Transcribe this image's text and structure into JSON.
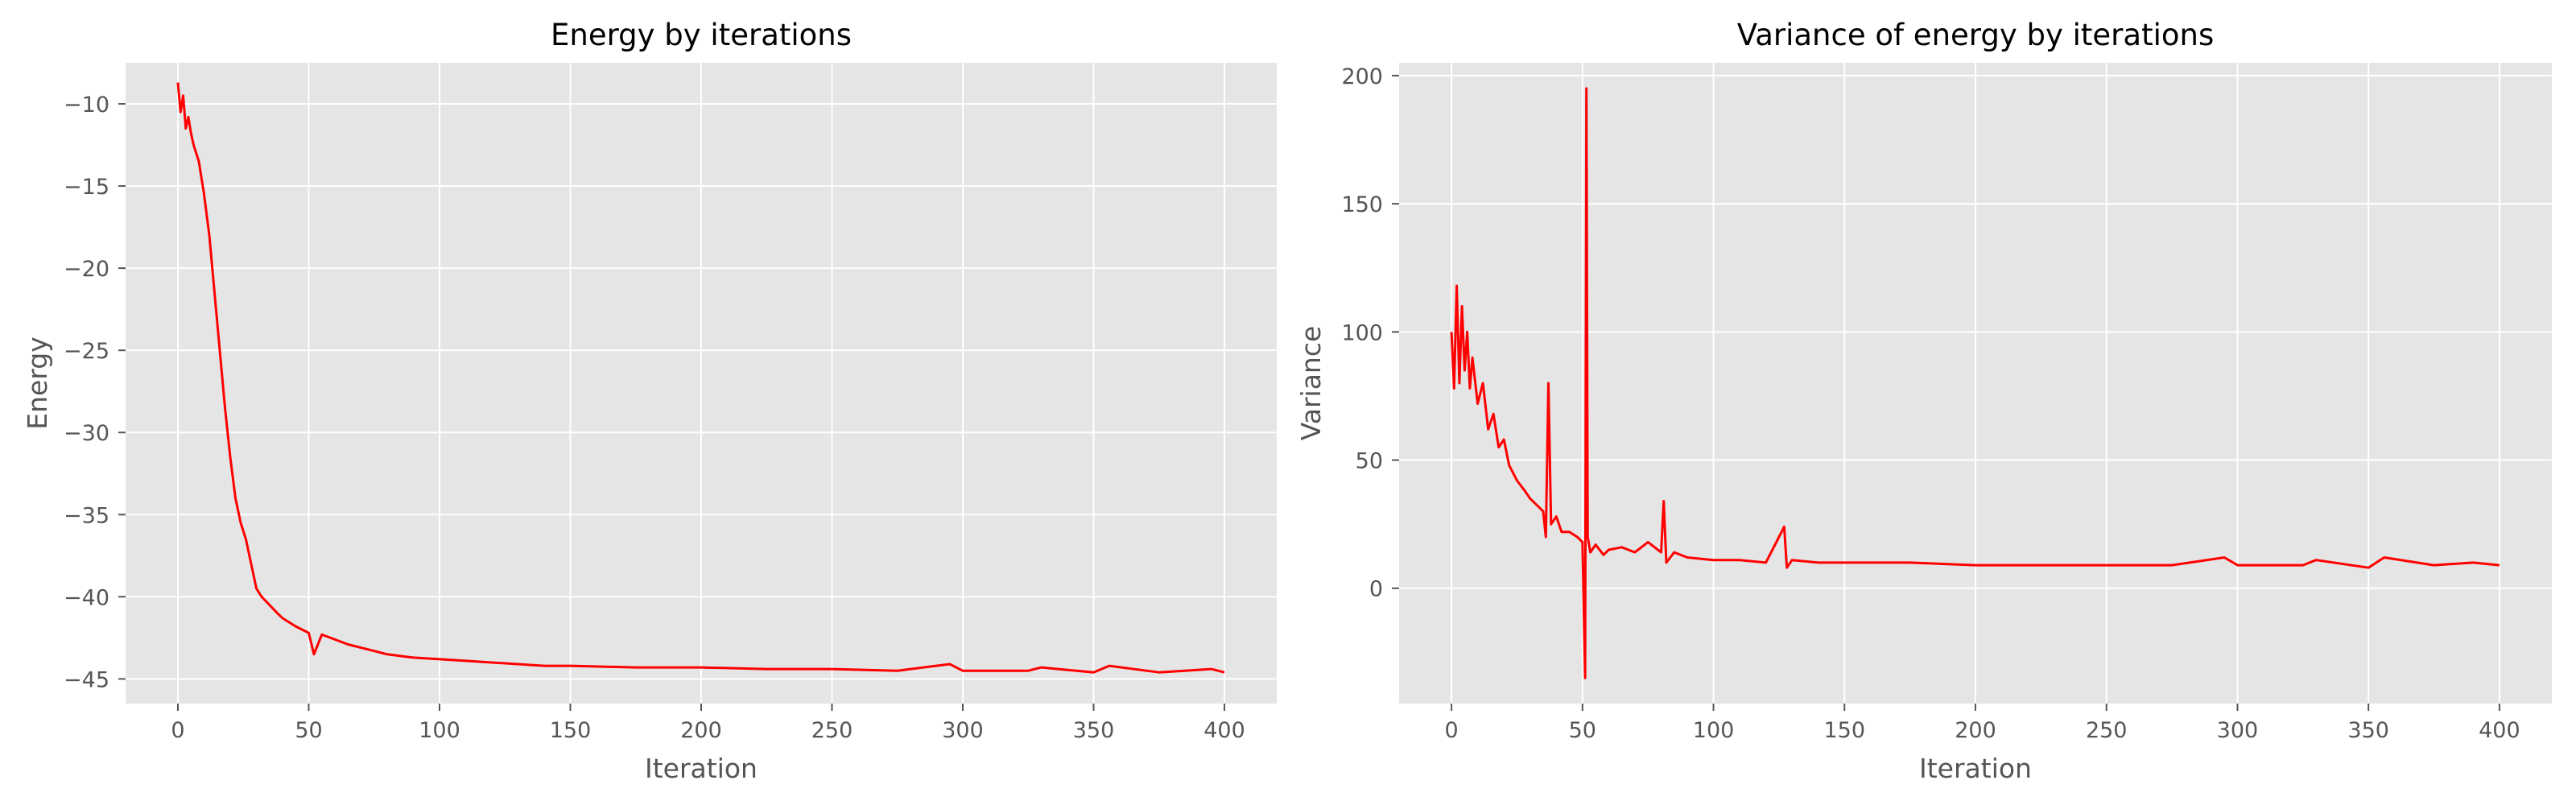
{
  "chart_data": [
    {
      "type": "line",
      "title": "Energy by iterations",
      "xlabel": "Iteration",
      "ylabel": "Energy",
      "xlim": [
        -20,
        420
      ],
      "ylim": [
        -46.5,
        -7.5
      ],
      "xticks": [
        0,
        50,
        100,
        150,
        200,
        250,
        300,
        350,
        400
      ],
      "yticks": [
        -45,
        -40,
        -35,
        -30,
        -25,
        -20,
        -15,
        -10
      ],
      "grid": true,
      "background": "#e5e5e5",
      "line_color": "#ff0000",
      "series": [
        {
          "name": "",
          "x": [
            0,
            1,
            2,
            3,
            4,
            5,
            6,
            8,
            10,
            12,
            14,
            16,
            18,
            20,
            22,
            24,
            26,
            28,
            30,
            32,
            35,
            38,
            40,
            45,
            50,
            52,
            55,
            60,
            65,
            70,
            75,
            80,
            90,
            100,
            110,
            120,
            130,
            140,
            150,
            175,
            200,
            225,
            250,
            275,
            295,
            300,
            325,
            330,
            350,
            356,
            375,
            395,
            400
          ],
          "y": [
            -8.7,
            -10.5,
            -9.5,
            -11.5,
            -10.8,
            -11.8,
            -12.5,
            -13.5,
            -15.5,
            -18.0,
            -21.5,
            -25.0,
            -28.5,
            -31.5,
            -34.0,
            -35.5,
            -36.5,
            -38.0,
            -39.5,
            -40.0,
            -40.5,
            -41.0,
            -41.3,
            -41.8,
            -42.2,
            -43.5,
            -42.3,
            -42.6,
            -42.9,
            -43.1,
            -43.3,
            -43.5,
            -43.7,
            -43.8,
            -43.9,
            -44.0,
            -44.1,
            -44.2,
            -44.2,
            -44.3,
            -44.3,
            -44.4,
            -44.4,
            -44.5,
            -44.1,
            -44.5,
            -44.5,
            -44.3,
            -44.6,
            -44.2,
            -44.6,
            -44.4,
            -44.6
          ]
        }
      ]
    },
    {
      "type": "line",
      "title": "Variance of energy by iterations",
      "xlabel": "Iteration",
      "ylabel": "Variance",
      "xlim": [
        -20,
        420
      ],
      "ylim": [
        -45,
        205
      ],
      "xticks": [
        0,
        50,
        100,
        150,
        200,
        250,
        300,
        350,
        400
      ],
      "yticks": [
        0,
        50,
        100,
        150,
        200
      ],
      "grid": true,
      "background": "#e5e5e5",
      "line_color": "#ff0000",
      "series": [
        {
          "name": "",
          "x": [
            0,
            1,
            2,
            3,
            4,
            5,
            6,
            7,
            8,
            10,
            12,
            14,
            16,
            18,
            20,
            22,
            25,
            28,
            30,
            33,
            35,
            36,
            37,
            38,
            40,
            42,
            45,
            48,
            50,
            51,
            51.5,
            52,
            53,
            55,
            58,
            60,
            65,
            70,
            75,
            80,
            81,
            82,
            85,
            90,
            100,
            110,
            120,
            127,
            128,
            130,
            140,
            150,
            175,
            200,
            225,
            250,
            275,
            295,
            300,
            325,
            330,
            350,
            356,
            375,
            390,
            400
          ],
          "y": [
            100,
            78,
            118,
            80,
            110,
            85,
            100,
            78,
            90,
            72,
            80,
            62,
            68,
            55,
            58,
            48,
            42,
            38,
            35,
            32,
            30,
            20,
            80,
            25,
            28,
            22,
            22,
            20,
            18,
            -35,
            195,
            20,
            14,
            17,
            13,
            15,
            16,
            14,
            18,
            14,
            34,
            10,
            14,
            12,
            11,
            11,
            10,
            24,
            8,
            11,
            10,
            10,
            10,
            9,
            9,
            9,
            9,
            12,
            9,
            9,
            11,
            8,
            12,
            9,
            10,
            9
          ]
        }
      ]
    }
  ]
}
